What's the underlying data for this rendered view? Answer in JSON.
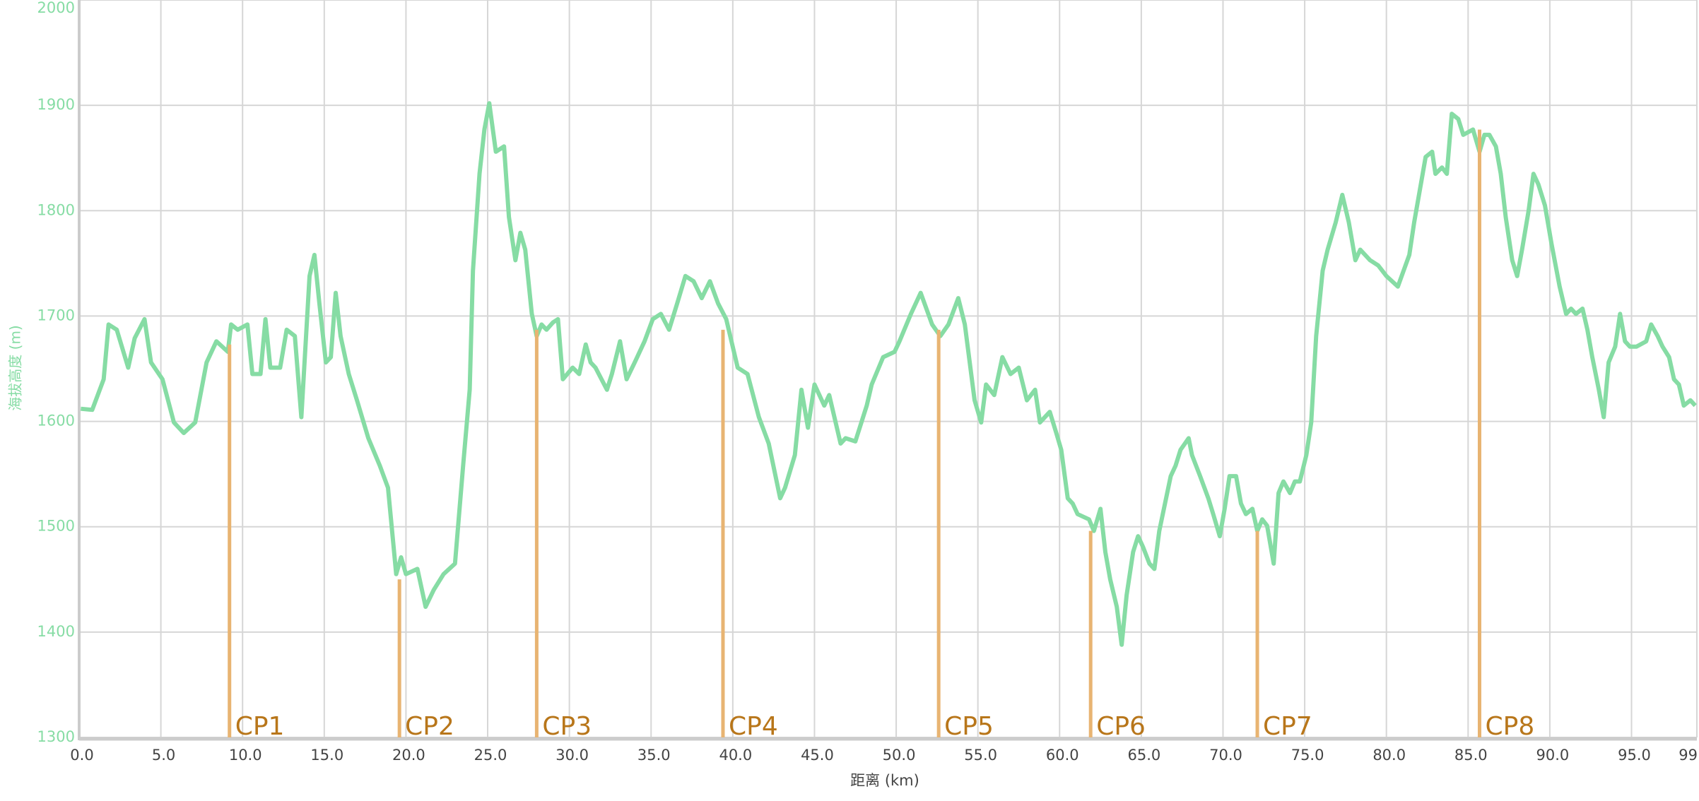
{
  "chart_data": {
    "type": "line",
    "y_label": "海拔高度 (m)",
    "x_label": "距离 (km)",
    "xlim": [
      0,
      99
    ],
    "ylim": [
      1300,
      2000
    ],
    "yticks": [
      1300,
      1400,
      1500,
      1600,
      1700,
      1800,
      1900,
      2000
    ],
    "xticks": [
      {
        "value": 0,
        "label": "0.0"
      },
      {
        "value": 5,
        "label": "5.0"
      },
      {
        "value": 10,
        "label": "10.0"
      },
      {
        "value": 15,
        "label": "15.0"
      },
      {
        "value": 20,
        "label": "20.0"
      },
      {
        "value": 25,
        "label": "25.0"
      },
      {
        "value": 30,
        "label": "30.0"
      },
      {
        "value": 35,
        "label": "35.0"
      },
      {
        "value": 40,
        "label": "40.0"
      },
      {
        "value": 45,
        "label": "45.0"
      },
      {
        "value": 50,
        "label": "50.0"
      },
      {
        "value": 55,
        "label": "55.0"
      },
      {
        "value": 60,
        "label": "60.0"
      },
      {
        "value": 65,
        "label": "65.0"
      },
      {
        "value": 70,
        "label": "70.0"
      },
      {
        "value": 75,
        "label": "75.0"
      },
      {
        "value": 80,
        "label": "80.0"
      },
      {
        "value": 85,
        "label": "85.0"
      },
      {
        "value": 90,
        "label": "90.0"
      },
      {
        "value": 95,
        "label": "95.0"
      },
      {
        "value": 99,
        "label": "99"
      }
    ],
    "grid": true,
    "series": [
      {
        "color": "#86dca4",
        "x": [
          0.1,
          0.8,
          1.5,
          1.8,
          2.3,
          3.0,
          3.4,
          4.0,
          4.4,
          5.1,
          5.8,
          6.4,
          7.1,
          7.8,
          8.4,
          9.1,
          9.3,
          9.7,
          10.3,
          10.6,
          11.1,
          11.4,
          11.7,
          12.3,
          12.7,
          13.2,
          13.6,
          14.1,
          14.4,
          14.7,
          15.1,
          15.4,
          15.7,
          16.0,
          16.5,
          17.0,
          17.7,
          18.4,
          18.9,
          19.4,
          19.7,
          20.0,
          20.7,
          21.2,
          21.7,
          22.3,
          23.0,
          23.5,
          23.9,
          24.1,
          24.5,
          24.8,
          25.1,
          25.5,
          26.0,
          26.3,
          26.7,
          27.0,
          27.3,
          27.7,
          28.0,
          28.3,
          28.6,
          29.0,
          29.3,
          29.6,
          30.2,
          30.6,
          31.0,
          31.3,
          31.6,
          32.3,
          32.6,
          33.1,
          33.5,
          34.0,
          34.6,
          35.1,
          35.6,
          36.1,
          36.6,
          37.1,
          37.6,
          38.1,
          38.6,
          39.1,
          39.6,
          40.3,
          40.9,
          41.6,
          42.2,
          42.9,
          43.2,
          43.8,
          44.2,
          44.6,
          45.0,
          45.6,
          45.9,
          46.6,
          46.9,
          47.5,
          48.2,
          48.5,
          49.2,
          49.9,
          50.2,
          50.9,
          51.5,
          52.2,
          52.7,
          53.2,
          53.8,
          54.2,
          54.8,
          55.2,
          55.5,
          56.0,
          56.5,
          57.0,
          57.5,
          58.0,
          58.5,
          58.8,
          59.4,
          59.8,
          60.1,
          60.5,
          60.8,
          61.1,
          61.8,
          62.1,
          62.5,
          62.8,
          63.1,
          63.5,
          63.8,
          64.1,
          64.5,
          64.8,
          65.1,
          65.5,
          65.8,
          66.1,
          66.8,
          67.1,
          67.4,
          67.9,
          68.1,
          68.6,
          69.1,
          69.4,
          69.8,
          70.1,
          70.4,
          70.8,
          71.1,
          71.4,
          71.8,
          72.1,
          72.4,
          72.7,
          73.1,
          73.4,
          73.7,
          74.1,
          74.4,
          74.7,
          75.1,
          75.4,
          75.7,
          76.1,
          76.4,
          76.9,
          77.3,
          77.7,
          78.1,
          78.4,
          79.0,
          79.5,
          80.0,
          80.7,
          81.4,
          81.7,
          82.4,
          82.8,
          83.0,
          83.4,
          83.7,
          84.0,
          84.4,
          84.7,
          85.3,
          85.7,
          86.0,
          86.3,
          86.7,
          87.0,
          87.3,
          87.7,
          88.0,
          88.3,
          88.7,
          89.0,
          89.3,
          89.7,
          90.1,
          90.6,
          91.0,
          91.3,
          91.6,
          92.0,
          92.3,
          92.6,
          93.0,
          93.3,
          93.6,
          94.0,
          94.3,
          94.6,
          94.9,
          95.3,
          95.9,
          96.2,
          96.6,
          96.9,
          97.3,
          97.6,
          97.9,
          98.2,
          98.6,
          98.9
        ],
        "values": [
          1612,
          1611,
          1640,
          1692,
          1687,
          1651,
          1679,
          1697,
          1656,
          1640,
          1599,
          1589,
          1599,
          1656,
          1676,
          1666,
          1692,
          1687,
          1692,
          1645,
          1645,
          1697,
          1651,
          1651,
          1687,
          1681,
          1604,
          1738,
          1758,
          1712,
          1656,
          1661,
          1722,
          1681,
          1645,
          1620,
          1584,
          1558,
          1537,
          1455,
          1471,
          1455,
          1460,
          1424,
          1440,
          1455,
          1465,
          1558,
          1630,
          1743,
          1835,
          1877,
          1902,
          1856,
          1861,
          1794,
          1753,
          1779,
          1763,
          1702,
          1681,
          1692,
          1687,
          1694,
          1697,
          1640,
          1651,
          1645,
          1673,
          1656,
          1651,
          1630,
          1645,
          1676,
          1640,
          1656,
          1676,
          1697,
          1702,
          1687,
          1712,
          1738,
          1733,
          1717,
          1733,
          1712,
          1697,
          1651,
          1645,
          1604,
          1579,
          1527,
          1537,
          1568,
          1630,
          1594,
          1635,
          1615,
          1625,
          1579,
          1584,
          1581,
          1615,
          1635,
          1661,
          1666,
          1676,
          1702,
          1722,
          1692,
          1681,
          1692,
          1717,
          1692,
          1620,
          1599,
          1635,
          1625,
          1661,
          1645,
          1651,
          1620,
          1630,
          1599,
          1609,
          1589,
          1573,
          1527,
          1522,
          1512,
          1507,
          1496,
          1517,
          1476,
          1450,
          1424,
          1388,
          1435,
          1476,
          1491,
          1481,
          1465,
          1460,
          1496,
          1548,
          1558,
          1573,
          1584,
          1568,
          1548,
          1527,
          1512,
          1491,
          1517,
          1548,
          1548,
          1522,
          1512,
          1517,
          1496,
          1507,
          1501,
          1465,
          1532,
          1543,
          1532,
          1543,
          1543,
          1568,
          1599,
          1681,
          1743,
          1763,
          1789,
          1815,
          1789,
          1753,
          1763,
          1753,
          1748,
          1738,
          1728,
          1758,
          1789,
          1851,
          1856,
          1835,
          1841,
          1835,
          1892,
          1887,
          1872,
          1877,
          1856,
          1872,
          1872,
          1861,
          1835,
          1794,
          1753,
          1738,
          1763,
          1800,
          1835,
          1825,
          1805,
          1769,
          1728,
          1702,
          1707,
          1702,
          1707,
          1687,
          1661,
          1630,
          1604,
          1656,
          1671,
          1702,
          1676,
          1671,
          1671,
          1676,
          1692,
          1681,
          1671,
          1661,
          1640,
          1635,
          1615,
          1620,
          1615
        ]
      }
    ],
    "checkpoint_color": "#e8b472",
    "checkpoints": [
      {
        "label": "CP1",
        "x": 9.2,
        "y": 1673
      },
      {
        "label": "CP2",
        "x": 19.6,
        "y": 1450
      },
      {
        "label": "CP3",
        "x": 28.0,
        "y": 1687
      },
      {
        "label": "CP4",
        "x": 39.4,
        "y": 1687
      },
      {
        "label": "CP5",
        "x": 52.6,
        "y": 1687
      },
      {
        "label": "CP6",
        "x": 61.9,
        "y": 1496
      },
      {
        "label": "CP7",
        "x": 72.1,
        "y": 1496
      },
      {
        "label": "CP8",
        "x": 85.7,
        "y": 1877
      }
    ]
  }
}
